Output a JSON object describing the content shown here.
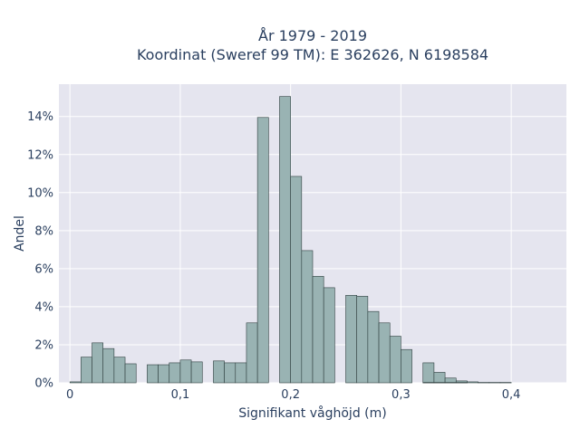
{
  "chart_data": {
    "type": "bar",
    "title": "År 1979 - 2019",
    "subtitle": "Koordinat (Sweref 99 TM): E 362626, N 6198584",
    "xlabel": "Signifikant våghöjd (m)",
    "ylabel": "Andel",
    "xlim": [
      -0.01,
      0.45
    ],
    "ylim": [
      0,
      15.7
    ],
    "grid": true,
    "bin_width": 0.01,
    "x_ticks": [
      {
        "value": 0,
        "label": "0"
      },
      {
        "value": 0.1,
        "label": "0,1"
      },
      {
        "value": 0.2,
        "label": "0,2"
      },
      {
        "value": 0.3,
        "label": "0,3"
      },
      {
        "value": 0.4,
        "label": "0,4"
      }
    ],
    "y_ticks": [
      {
        "value": 0,
        "label": "0%"
      },
      {
        "value": 2,
        "label": "2%"
      },
      {
        "value": 4,
        "label": "4%"
      },
      {
        "value": 6,
        "label": "6%"
      },
      {
        "value": 8,
        "label": "8%"
      },
      {
        "value": 10,
        "label": "10%"
      },
      {
        "value": 12,
        "label": "12%"
      },
      {
        "value": 14,
        "label": "14%"
      }
    ],
    "colors": {
      "bar_fill": "#99b3b3",
      "bar_stroke": "#2f3f3f",
      "plot_bg": "#e5e5ef",
      "grid": "#ffffff"
    },
    "bins": [
      {
        "x": 0.01,
        "value": 0.05
      },
      {
        "x": 0.02,
        "value": 1.35
      },
      {
        "x": 0.03,
        "value": 2.1
      },
      {
        "x": 0.04,
        "value": 1.8
      },
      {
        "x": 0.05,
        "value": 1.35
      },
      {
        "x": 0.06,
        "value": 1.0
      },
      {
        "x": 0.07,
        "value": 0.0
      },
      {
        "x": 0.08,
        "value": 0.95
      },
      {
        "x": 0.09,
        "value": 0.95
      },
      {
        "x": 0.1,
        "value": 1.05
      },
      {
        "x": 0.11,
        "value": 1.2
      },
      {
        "x": 0.12,
        "value": 1.1
      },
      {
        "x": 0.13,
        "value": 0.0
      },
      {
        "x": 0.14,
        "value": 1.15
      },
      {
        "x": 0.15,
        "value": 1.05
      },
      {
        "x": 0.16,
        "value": 1.05
      },
      {
        "x": 0.17,
        "value": 3.15
      },
      {
        "x": 0.18,
        "value": 13.95
      },
      {
        "x": 0.19,
        "value": 0.0
      },
      {
        "x": 0.2,
        "value": 15.05
      },
      {
        "x": 0.21,
        "value": 10.85
      },
      {
        "x": 0.22,
        "value": 6.95
      },
      {
        "x": 0.23,
        "value": 5.6
      },
      {
        "x": 0.24,
        "value": 5.0
      },
      {
        "x": 0.25,
        "value": 0.0
      },
      {
        "x": 0.26,
        "value": 4.6
      },
      {
        "x": 0.27,
        "value": 4.55
      },
      {
        "x": 0.28,
        "value": 3.75
      },
      {
        "x": 0.29,
        "value": 3.15
      },
      {
        "x": 0.3,
        "value": 2.45
      },
      {
        "x": 0.31,
        "value": 1.75
      },
      {
        "x": 0.32,
        "value": 0.0
      },
      {
        "x": 0.33,
        "value": 1.05
      },
      {
        "x": 0.34,
        "value": 0.55
      },
      {
        "x": 0.35,
        "value": 0.25
      },
      {
        "x": 0.36,
        "value": 0.1
      },
      {
        "x": 0.37,
        "value": 0.05
      }
    ],
    "bins_tail": [
      {
        "x": 0.33,
        "value": 0.02
      },
      {
        "x": 0.34,
        "value": 0.02
      },
      {
        "x": 0.35,
        "value": 0.02
      },
      {
        "x": 0.36,
        "value": 0.02
      },
      {
        "x": 0.38,
        "value": 0.02
      },
      {
        "x": 0.39,
        "value": 0.02
      },
      {
        "x": 0.4,
        "value": 0.02
      }
    ]
  }
}
